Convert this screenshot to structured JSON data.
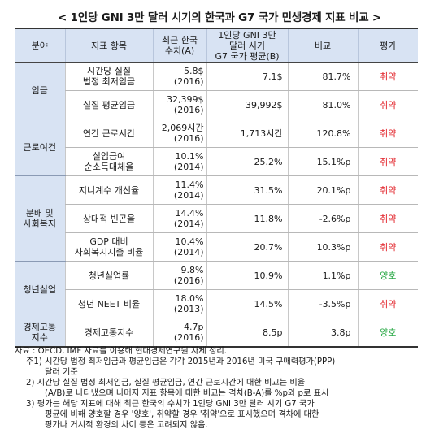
{
  "title": "< 1인당 GNI 3만 달러 시기의 한국과 G7 국가 민생경제 지표 비교 >",
  "headers": {
    "category": "분야",
    "indicator": "지표 항목",
    "recent_l1": "최근 한국",
    "recent_l2": "수치(A)",
    "g7_l1": "1인당 GNI 3만",
    "g7_l2": "달러 시기",
    "g7_l3": "G7 국가 평균(B)",
    "compare": "비교",
    "evaluation": "평가"
  },
  "categories": {
    "wage": "임금",
    "work_l1": "근로여건",
    "dist_l1": "분배 및",
    "dist_l2": "사회복지",
    "youth": "청년실업",
    "pain_l1": "경제고통",
    "pain_l2": "지수"
  },
  "rows": [
    {
      "ind1": "시간당 실질",
      "ind2": "법정 최저임금",
      "val": "5.8$",
      "year": "(2016)",
      "g7": "7.1$",
      "cmp": "81.7%",
      "eval": "취약"
    },
    {
      "ind1": "실질 평균임금",
      "ind2": "",
      "val": "32,399$",
      "year": "(2016)",
      "g7": "39,992$",
      "cmp": "81.0%",
      "eval": "취약"
    },
    {
      "ind1": "연간 근로시간",
      "ind2": "",
      "val": "2,069시간",
      "year": "(2016)",
      "g7": "1,713시간",
      "cmp": "120.8%",
      "eval": "취약"
    },
    {
      "ind1": "실업급여",
      "ind2": "순소득대체율",
      "val": "10.1%",
      "year": "(2014)",
      "g7": "25.2%",
      "cmp": "15.1%p",
      "eval": "취약"
    },
    {
      "ind1": "지니계수 개선율",
      "ind2": "",
      "val": "11.4%",
      "year": "(2014)",
      "g7": "31.5%",
      "cmp": "20.1%p",
      "eval": "취약"
    },
    {
      "ind1": "상대적 빈곤율",
      "ind2": "",
      "val": "14.4%",
      "year": "(2014)",
      "g7": "11.8%",
      "cmp": "-2.6%p",
      "eval": "취약"
    },
    {
      "ind1": "GDP 대비",
      "ind2": "사회복지지출 비율",
      "val": "10.4%",
      "year": "(2014)",
      "g7": "20.7%",
      "cmp": "10.3%p",
      "eval": "취약"
    },
    {
      "ind1": "청년실업률",
      "ind2": "",
      "val": "9.8%",
      "year": "(2016)",
      "g7": "10.9%",
      "cmp": "1.1%p",
      "eval": "양호"
    },
    {
      "ind1": "청년 NEET 비율",
      "ind2": "",
      "val": "18.0%",
      "year": "(2013)",
      "g7": "14.5%",
      "cmp": "-3.5%p",
      "eval": "취약"
    },
    {
      "ind1": "경제고통지수",
      "ind2": "",
      "val": "4.7p",
      "year": "(2016)",
      "g7": "8.5p",
      "cmp": "3.8p",
      "eval": "양호"
    }
  ],
  "notes": {
    "source": "자료 : OECD, IMF 자료를 이용해 현대경제연구원 자체 정리.",
    "n1a": "주1) 시간당 법정 최저임금과 평균임금은 각각 2015년과 2016년 미국 구매력평가(PPP)",
    "n1b": "달러 기준",
    "n2a": "2) 시간당 실질 법정 최저임금, 실질 평균임금, 연간 근로시간에 대한 비교는 비율",
    "n2b": "(A/B)로 나타냈으며 나머지 지표 항목에 대한 비교는 격차(B-A)를 %p와 p로 표시",
    "n3a": "3) 평가는 해당 지표에 대해 최근 한국의 수치가 1인당 GNI 3만 달러 시기 G7 국가",
    "n3b": "평균에 비해 양호할 경우 '양호', 취약할 경우 '취약'으로 표시했으며 격차에 대한",
    "n3c": "평가나 거시적 환경의 차이 등은 고려되지 않음."
  },
  "colors": {
    "weak": "#e2232a",
    "good": "#27a844",
    "header_bg": "#d8e3f3"
  }
}
